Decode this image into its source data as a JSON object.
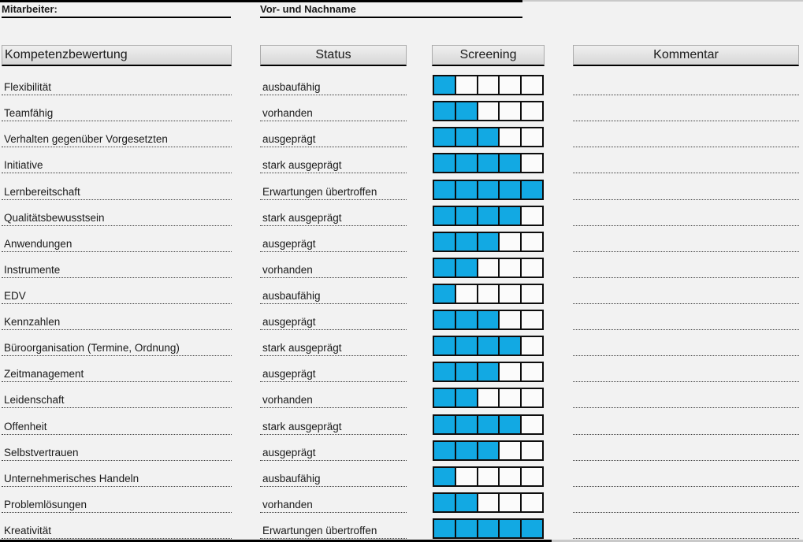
{
  "page": {
    "background": "#f2f2f2",
    "accent_fill": "#12a9e3"
  },
  "top": {
    "employee_label": "Mitarbeiter:",
    "name_label": "Vor- und Nachname"
  },
  "columns": {
    "competency": "Kompetenzbewertung",
    "status": "Status",
    "screening": "Screening",
    "comment": "Kommentar"
  },
  "screening": {
    "max": 5,
    "fill_color": "#12a9e3"
  },
  "rows": [
    {
      "competency": "Flexibilität",
      "status": "ausbaufähig",
      "screening": 1,
      "comment": ""
    },
    {
      "competency": "Teamfähig",
      "status": "vorhanden",
      "screening": 2,
      "comment": ""
    },
    {
      "competency": "Verhalten gegenüber Vorgesetzten",
      "status": "ausgeprägt",
      "screening": 3,
      "comment": ""
    },
    {
      "competency": "Initiative",
      "status": "stark ausgeprägt",
      "screening": 4,
      "comment": ""
    },
    {
      "competency": "Lernbereitschaft",
      "status": "Erwartungen übertroffen",
      "screening": 5,
      "comment": ""
    },
    {
      "competency": "Qualitätsbewusstsein",
      "status": "stark ausgeprägt",
      "screening": 4,
      "comment": ""
    },
    {
      "competency": "Anwendungen",
      "status": "ausgeprägt",
      "screening": 3,
      "comment": ""
    },
    {
      "competency": "Instrumente",
      "status": "vorhanden",
      "screening": 2,
      "comment": ""
    },
    {
      "competency": "EDV",
      "status": "ausbaufähig",
      "screening": 1,
      "comment": ""
    },
    {
      "competency": "Kennzahlen",
      "status": "ausgeprägt",
      "screening": 3,
      "comment": ""
    },
    {
      "competency": "Büroorganisation (Termine, Ordnung)",
      "status": "stark ausgeprägt",
      "screening": 4,
      "comment": ""
    },
    {
      "competency": "Zeitmanagement",
      "status": "ausgeprägt",
      "screening": 3,
      "comment": ""
    },
    {
      "competency": "Leidenschaft",
      "status": "vorhanden",
      "screening": 2,
      "comment": ""
    },
    {
      "competency": "Offenheit",
      "status": "stark ausgeprägt",
      "screening": 4,
      "comment": ""
    },
    {
      "competency": "Selbstvertrauen",
      "status": "ausgeprägt",
      "screening": 3,
      "comment": ""
    },
    {
      "competency": "Unternehmerisches Handeln",
      "status": "ausbaufähig",
      "screening": 1,
      "comment": ""
    },
    {
      "competency": "Problemlösungen",
      "status": "vorhanden",
      "screening": 2,
      "comment": ""
    },
    {
      "competency": "Kreativität",
      "status": "Erwartungen übertroffen",
      "screening": 5,
      "comment": ""
    }
  ]
}
